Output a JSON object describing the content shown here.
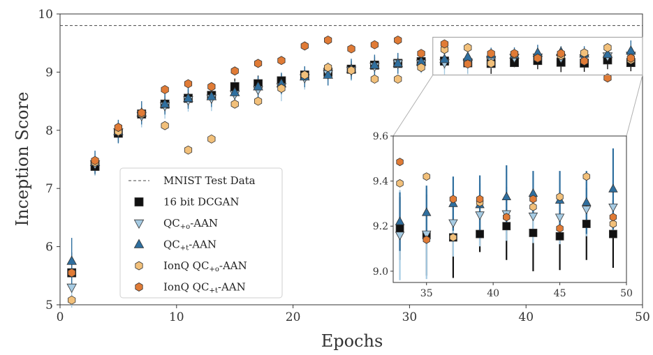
{
  "chart_data": {
    "type": "scatter",
    "xlabel": "Epochs",
    "ylabel": "Inception Score",
    "xlim": [
      0,
      50
    ],
    "ylim": [
      5,
      10
    ],
    "xticks": [
      0,
      10,
      20,
      30,
      40,
      50
    ],
    "yticks": [
      5,
      6,
      7,
      8,
      9,
      10
    ],
    "grid": false,
    "legend_position": "lower-left",
    "reference_line": {
      "name": "MNIST Test Data",
      "y": 9.8,
      "style": "dashed",
      "color": "#444444"
    },
    "series": [
      {
        "name": "16 bit DCGAN",
        "marker": "square",
        "color": "#111111",
        "x": [
          1,
          3,
          5,
          7,
          9,
          11,
          13,
          15,
          17,
          19,
          21,
          23,
          25,
          27,
          29,
          31,
          33,
          35,
          37,
          39,
          41,
          43,
          45,
          47,
          49
        ],
        "y": [
          5.55,
          7.38,
          7.95,
          8.28,
          8.45,
          8.55,
          8.6,
          8.75,
          8.8,
          8.85,
          8.95,
          9.0,
          9.05,
          9.12,
          9.15,
          9.18,
          9.19,
          9.16,
          9.15,
          9.165,
          9.2,
          9.17,
          9.155,
          9.21,
          9.165
        ],
        "err": [
          0.35,
          0.15,
          0.15,
          0.15,
          0.15,
          0.15,
          0.14,
          0.14,
          0.14,
          0.14,
          0.14,
          0.14,
          0.14,
          0.14,
          0.14,
          0.14,
          0.14,
          0.18,
          0.18,
          0.08,
          0.15,
          0.17,
          0.15,
          0.16,
          0.15
        ]
      },
      {
        "name": "QC+o-AAN",
        "label_main": "QC",
        "label_sub": "+o",
        "label_tail": "-AAN",
        "marker": "triangle-down",
        "color": "#a6cbe3",
        "x": [
          1,
          3,
          5,
          7,
          9,
          11,
          13,
          15,
          17,
          19,
          21,
          23,
          25,
          27,
          29,
          31,
          33,
          35,
          37,
          39,
          41,
          43,
          45,
          47,
          49
        ],
        "y": [
          5.3,
          7.42,
          7.97,
          8.25,
          8.42,
          8.52,
          8.55,
          8.62,
          8.7,
          8.75,
          8.9,
          8.97,
          9.03,
          9.1,
          9.15,
          9.15,
          9.16,
          9.165,
          9.215,
          9.25,
          9.255,
          9.245,
          9.24,
          9.275,
          9.285
        ],
        "err": [
          0.35,
          0.2,
          0.2,
          0.2,
          0.22,
          0.2,
          0.22,
          0.22,
          0.2,
          0.25,
          0.2,
          0.2,
          0.18,
          0.18,
          0.17,
          0.17,
          0.2,
          0.2,
          0.15,
          0.14,
          0.12,
          0.12,
          0.12,
          0.12,
          0.12
        ]
      },
      {
        "name": "QC+t-AAN",
        "label_main": "QC",
        "label_sub": "+t",
        "label_tail": "-AAN",
        "marker": "triangle-up",
        "color": "#2f6f9f",
        "x": [
          1,
          3,
          5,
          7,
          9,
          11,
          13,
          15,
          17,
          19,
          21,
          23,
          25,
          27,
          29,
          31,
          33,
          35,
          37,
          39,
          41,
          43,
          45,
          47,
          49
        ],
        "y": [
          5.75,
          7.45,
          7.98,
          8.3,
          8.45,
          8.55,
          8.58,
          8.65,
          8.75,
          8.8,
          8.92,
          8.95,
          9.05,
          9.12,
          9.15,
          9.18,
          9.22,
          9.26,
          9.3,
          9.295,
          9.33,
          9.345,
          9.315,
          9.305,
          9.365
        ],
        "err": [
          0.4,
          0.2,
          0.2,
          0.2,
          0.18,
          0.18,
          0.18,
          0.18,
          0.18,
          0.18,
          0.18,
          0.18,
          0.18,
          0.18,
          0.18,
          0.18,
          0.13,
          0.12,
          0.12,
          0.13,
          0.14,
          0.1,
          0.13,
          0.14,
          0.18
        ]
      },
      {
        "name": "IonQ QC+o-AAN",
        "label_main": "IonQ QC",
        "label_sub": "+o",
        "label_tail": "-AAN",
        "marker": "hexagon",
        "color": "#f2c07a",
        "x": [
          1,
          3,
          5,
          7,
          9,
          11,
          13,
          15,
          17,
          19,
          21,
          23,
          25,
          27,
          29,
          31,
          33,
          35,
          37,
          39,
          41,
          43,
          45,
          47,
          49
        ],
        "y": [
          5.08,
          7.45,
          7.98,
          8.28,
          8.08,
          7.66,
          7.85,
          8.45,
          8.5,
          8.72,
          8.95,
          9.08,
          9.03,
          8.88,
          8.88,
          9.08,
          9.39,
          9.42,
          9.15,
          9.305,
          9.24,
          9.285,
          9.33,
          9.42,
          9.21
        ],
        "err": []
      },
      {
        "name": "IonQ QC+t-AAN",
        "label_main": "IonQ QC",
        "label_sub": "+t",
        "label_tail": "-AAN",
        "marker": "hexagon",
        "color": "#e07b36",
        "x": [
          1,
          3,
          5,
          7,
          9,
          11,
          13,
          15,
          17,
          19,
          21,
          23,
          25,
          27,
          29,
          31,
          33,
          35,
          37,
          39,
          41,
          43,
          45,
          47,
          49
        ],
        "y": [
          5.55,
          7.48,
          8.05,
          8.3,
          8.7,
          8.8,
          8.75,
          9.02,
          9.15,
          9.2,
          9.45,
          9.55,
          9.4,
          9.47,
          9.55,
          9.32,
          9.485,
          9.14,
          9.32,
          9.32,
          9.24,
          9.32,
          9.19,
          8.9,
          9.24
        ],
        "err": []
      }
    ],
    "inset": {
      "xlim": [
        32.5,
        50
      ],
      "ylim": [
        8.95,
        9.6
      ],
      "xticks": [
        35,
        40,
        45,
        50
      ],
      "yticks": [
        9.0,
        9.2,
        9.4,
        9.6
      ],
      "xtick_labels": [
        "35",
        "40",
        "45",
        "50"
      ],
      "ytick_labels": [
        "9.0",
        "9.2",
        "9.4",
        "9.6"
      ],
      "zoom_region": {
        "x": [
          32,
          50
        ],
        "y": [
          8.95,
          9.6
        ]
      },
      "offsets": {
        "16 bit DCGAN": 0,
        "QC+o-AAN": 0,
        "QC+t-AAN": 0,
        "IonQ QC+o-AAN": 0,
        "IonQ QC+t-AAN": 0
      }
    }
  }
}
